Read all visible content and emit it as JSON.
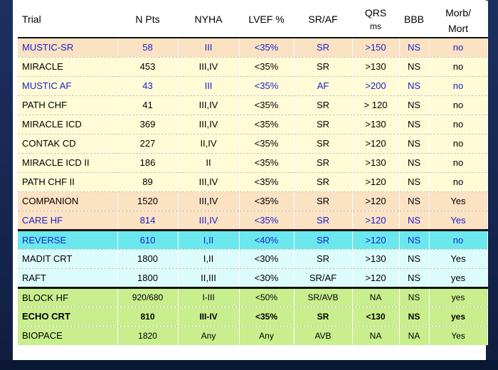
{
  "table": {
    "headers": {
      "trial": "Trial",
      "npts": "N Pts",
      "nyha": "NYHA",
      "lvef": "LVEF %",
      "rhythm": "SR/AF",
      "qrs": "QRS",
      "qrs_unit": "ms",
      "bbb": "BBB",
      "outcome_line1": "Morb/",
      "outcome_line2": "Mort"
    },
    "rows": [
      {
        "trial": "MUSTIC-SR",
        "npts": "58",
        "nyha": "III",
        "lvef": "<35%",
        "rhythm": "SR",
        "qrs": ">150",
        "bbb": "NS",
        "outcome": "no"
      },
      {
        "trial": "MIRACLE",
        "npts": "453",
        "nyha": "III,IV",
        "lvef": "<35%",
        "rhythm": "SR",
        "qrs": ">130",
        "bbb": "NS",
        "outcome": "no"
      },
      {
        "trial": "MUSTIC AF",
        "npts": "43",
        "nyha": "III",
        "lvef": "<35%",
        "rhythm": "AF",
        "qrs": ">200",
        "bbb": "NS",
        "outcome": "no"
      },
      {
        "trial": "PATH CHF",
        "npts": "41",
        "nyha": "III,IV",
        "lvef": "<35%",
        "rhythm": "SR",
        "qrs": "> 120",
        "bbb": "NS",
        "outcome": "no"
      },
      {
        "trial": "MIRACLE ICD",
        "npts": "369",
        "nyha": "III,IV",
        "lvef": "<35%",
        "rhythm": "SR",
        "qrs": ">130",
        "bbb": "NS",
        "outcome": "no"
      },
      {
        "trial": "CONTAK CD",
        "npts": "227",
        "nyha": "II,IV",
        "lvef": "<35%",
        "rhythm": "SR",
        "qrs": ">120",
        "bbb": "NS",
        "outcome": "no"
      },
      {
        "trial": "MIRACLE ICD II",
        "npts": "186",
        "nyha": "II",
        "lvef": "<35%",
        "rhythm": "SR",
        "qrs": ">130",
        "bbb": "NS",
        "outcome": "no"
      },
      {
        "trial": "PATH CHF II",
        "npts": "89",
        "nyha": "III,IV",
        "lvef": "<35%",
        "rhythm": "SR",
        "qrs": ">120",
        "bbb": "NS",
        "outcome": "no"
      },
      {
        "trial": "COMPANION",
        "npts": "1520",
        "nyha": "III,IV",
        "lvef": "<35%",
        "rhythm": "SR",
        "qrs": ">120",
        "bbb": "NS",
        "outcome": "Yes"
      },
      {
        "trial": "CARE HF",
        "npts": "814",
        "nyha": "III,IV",
        "lvef": "<35%",
        "rhythm": "SR",
        "qrs": ">120",
        "bbb": "NS",
        "outcome": "Yes"
      },
      {
        "trial": "REVERSE",
        "npts": "610",
        "nyha": "I,II",
        "lvef": "<40%",
        "rhythm": "SR",
        "qrs": ">120",
        "bbb": "NS",
        "outcome": "no"
      },
      {
        "trial": "MADIT CRT",
        "npts": "1800",
        "nyha": "I,II",
        "lvef": "<30%",
        "rhythm": "SR",
        "qrs": ">130",
        "bbb": "NS",
        "outcome": "Yes"
      },
      {
        "trial": "RAFT",
        "npts": "1800",
        "nyha": "II,III",
        "lvef": "<30%",
        "rhythm": "SR/AF",
        "qrs": ">120",
        "bbb": "NS",
        "outcome": "yes"
      },
      {
        "trial": "BLOCK HF",
        "npts": "920/680",
        "nyha": "I-III",
        "lvef": "<50%",
        "rhythm": "SR/AVB",
        "qrs": "NA",
        "bbb": "NS",
        "outcome": "yes"
      },
      {
        "trial": "ECHO CRT",
        "npts": "810",
        "nyha": "III-IV",
        "lvef": "<35%",
        "rhythm": "SR",
        "qrs": "<130",
        "bbb": "NS",
        "outcome": "yes"
      },
      {
        "trial": "BIOPACE",
        "npts": "1820",
        "nyha": "Any",
        "lvef": "Any",
        "rhythm": "AVB",
        "qrs": "NA",
        "bbb": "NA",
        "outcome": "Yes"
      }
    ]
  },
  "colors": {
    "orange_row": "#fbe2c3",
    "yellow_row": "#fefbd6",
    "cyan_row": "#6ae8ee",
    "light_cyan_row": "#dcfbfb",
    "green_row": "#c9ee8e",
    "blue_text": "#1c1ecc",
    "slide_background": "#14254e"
  }
}
